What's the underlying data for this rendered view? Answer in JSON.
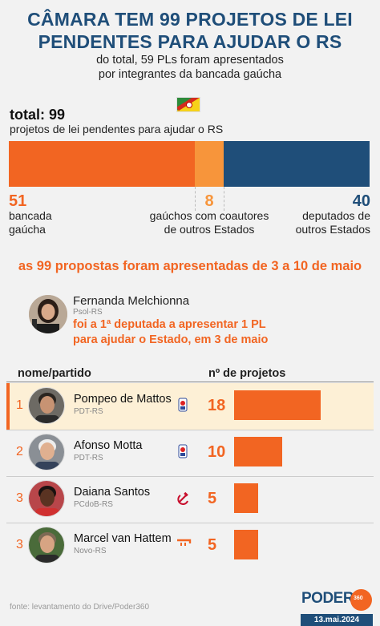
{
  "header": {
    "title_line1": "CÂMARA TEM 99 PROJETOS DE LEI",
    "title_line2": "PENDENTES PARA AJUDAR O RS",
    "subtitle_line1": "do total, 59 PLs foram apresentados",
    "subtitle_line2": "por integrantes da bancada gaúcha"
  },
  "total": {
    "label": "total: 99",
    "desc": "projetos de lei pendentes para ajudar o RS"
  },
  "colors": {
    "orange": "#f26522",
    "light_orange": "#f7953b",
    "navy": "#1f4e79"
  },
  "chart_data": [
    {
      "type": "bar",
      "stacked": true,
      "total": 99,
      "segments": [
        {
          "value": 51,
          "label_line1": "bancada",
          "label_line2": "gaúcha",
          "color": "#f26522"
        },
        {
          "value": 8,
          "label_line1": "gaúchos com coautores",
          "label_line2": "de outros Estados",
          "color": "#f7953b"
        },
        {
          "value": 40,
          "label_line1": "deputados de",
          "label_line2": "outros Estados",
          "color": "#1f4e79"
        }
      ]
    },
    {
      "type": "bar",
      "orientation": "horizontal",
      "col_name": "nome/partido",
      "col_count": "nº de projetos",
      "xlim": [
        0,
        18
      ],
      "rows": [
        {
          "rank": "1",
          "name": "Pompeo de Mattos",
          "party": "PDT-RS",
          "value": 18,
          "icon": "pdt-icon"
        },
        {
          "rank": "2",
          "name": "Afonso Motta",
          "party": "PDT-RS",
          "value": 10,
          "icon": "pdt-icon"
        },
        {
          "rank": "3",
          "name": "Daiana Santos",
          "party": "PCdoB-RS",
          "value": 5,
          "icon": "hammer-sickle-icon"
        },
        {
          "rank": "3",
          "name": "Marcel van Hattem",
          "party": "Novo-RS",
          "value": 5,
          "icon": "novo-icon"
        }
      ]
    }
  ],
  "may_note": "as 99 propostas foram apresentadas de 3 a 10 de maio",
  "first": {
    "name": "Fernanda Melchionna",
    "party": "Psol-RS",
    "desc_line1": "foi a 1ª deputada a apresentar 1 PL",
    "desc_line2": "para ajudar o Estado, em 3 de maio"
  },
  "footer": {
    "source": "fonte: levantamento do Drive/Poder360",
    "brand": "PODER",
    "brand_num": "360",
    "date": "13.mai.2024"
  }
}
